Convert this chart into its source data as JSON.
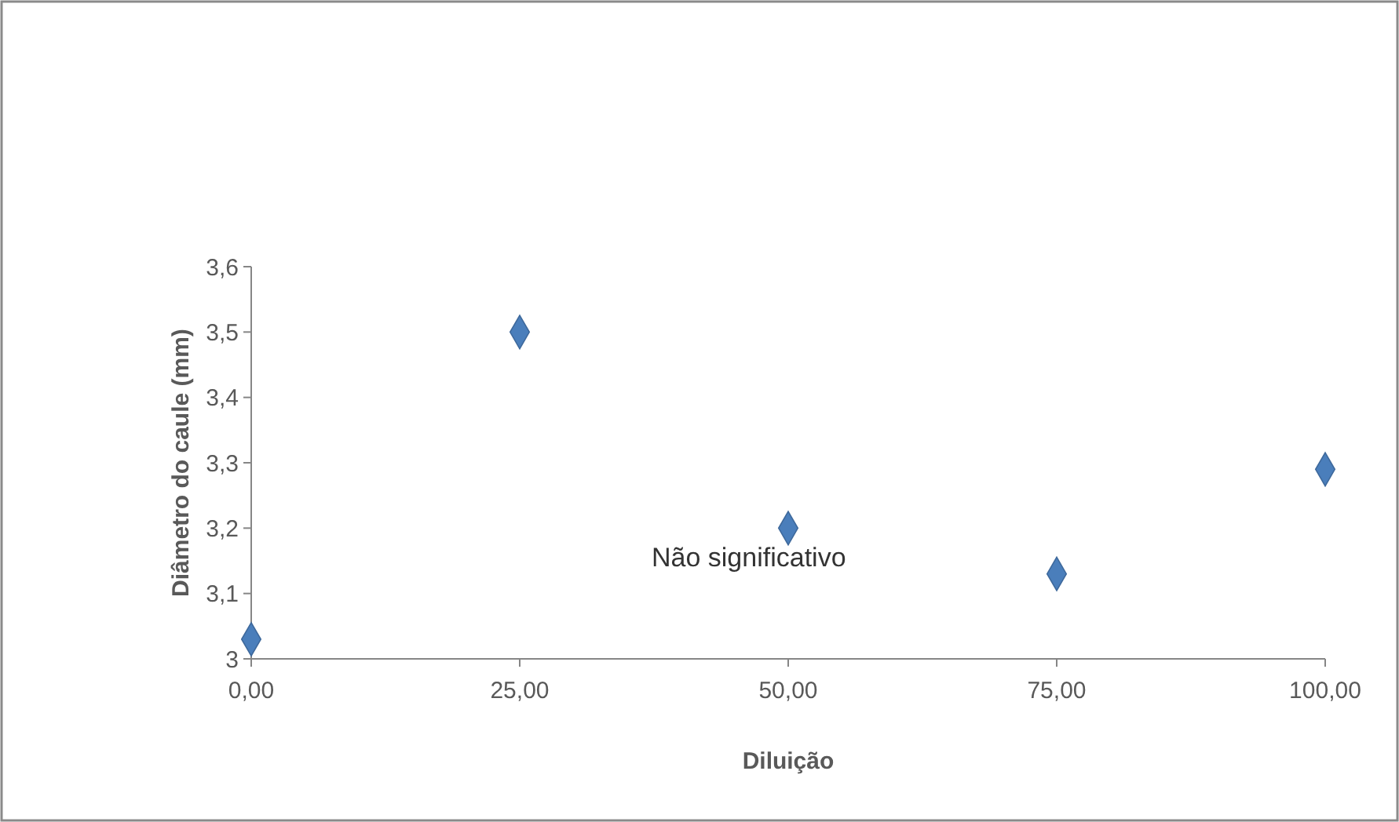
{
  "chart_data": {
    "type": "scatter",
    "xlabel": "Diluição",
    "ylabel": "Diâmetro do caule (mm)",
    "x": [
      0,
      25,
      50,
      75,
      100
    ],
    "values": [
      3.03,
      3.5,
      3.2,
      3.13,
      3.29
    ],
    "color": "#4a7ebb",
    "marker": "diamond",
    "xlim": [
      0,
      100
    ],
    "xticks": [
      {
        "value": 0,
        "label": "0,00"
      },
      {
        "value": 25,
        "label": "25,00"
      },
      {
        "value": 50,
        "label": "50,00"
      },
      {
        "value": 75,
        "label": "75,00"
      },
      {
        "value": 100,
        "label": "100,00"
      }
    ],
    "ylim": [
      3,
      3.6
    ],
    "yticks": [
      {
        "value": 3,
        "label": "3"
      },
      {
        "value": 3.1,
        "label": "3,1"
      },
      {
        "value": 3.2,
        "label": "3,2"
      },
      {
        "value": 3.3,
        "label": "3,3"
      },
      {
        "value": 3.4,
        "label": "3,4"
      },
      {
        "value": 3.5,
        "label": "3,5"
      },
      {
        "value": 3.6,
        "label": "3,6"
      }
    ],
    "annotations": [
      "Não significativo"
    ]
  }
}
